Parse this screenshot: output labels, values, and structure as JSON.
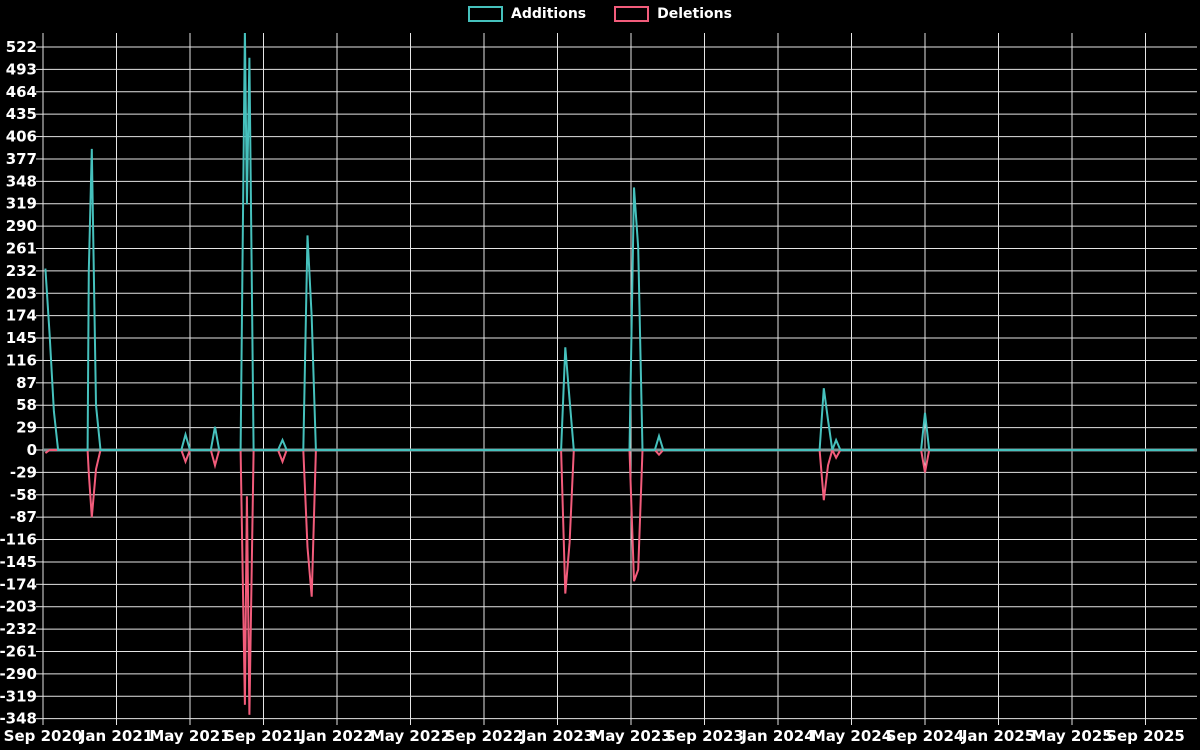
{
  "colors": {
    "background": "#000000",
    "additions": "#46C1BD",
    "deletions": "#F25C7B",
    "grid": "#F2F2F2",
    "zero_line": "#7E9494",
    "text": "#FFFFFF"
  },
  "legend": {
    "items": [
      {
        "label": "Additions",
        "color": "#46C1BD"
      },
      {
        "label": "Deletions",
        "color": "#F25C7B"
      }
    ]
  },
  "chart_data": {
    "type": "line",
    "title": "",
    "xlabel": "",
    "ylabel": "",
    "grid": true,
    "legend_position": "top-center",
    "x_range": [
      "Sep 2020",
      "Sep 2025"
    ],
    "ylim": [
      -348,
      522
    ],
    "y_tick_step": 29,
    "y_ticks": [
      522,
      493,
      464,
      435,
      406,
      377,
      348,
      319,
      290,
      261,
      232,
      203,
      174,
      145,
      116,
      87,
      58,
      29,
      0,
      -29,
      -58,
      -87,
      -116,
      -145,
      -174,
      -203,
      -232,
      -261,
      -290,
      -319,
      -348
    ],
    "x_ticks": [
      "Sep 2020",
      "Jan 2021",
      "May 2021",
      "Sep 2021",
      "Jan 2022",
      "May 2022",
      "Sep 2022",
      "Jan 2023",
      "May 2023",
      "Sep 2023",
      "Jan 2024",
      "May 2024",
      "Sep 2024",
      "Jan 2025",
      "May 2025",
      "Sep 2025"
    ],
    "series_names": [
      "Additions",
      "Deletions"
    ],
    "note_top_clip": "Aug 2021 additions spike exceeds chart top (clipped above 522)",
    "points": [
      {
        "t": "2020-09-05",
        "a": 235,
        "d": -4
      },
      {
        "t": "2020-09-12",
        "a": 150,
        "d": 0
      },
      {
        "t": "2020-09-19",
        "a": 50,
        "d": 0
      },
      {
        "t": "2020-09-26",
        "a": 0,
        "d": 0
      },
      {
        "t": "2020-11-14",
        "a": 0,
        "d": 0
      },
      {
        "t": "2020-11-16",
        "a": 232,
        "d": -30
      },
      {
        "t": "2020-11-21",
        "a": 390,
        "d": -87
      },
      {
        "t": "2020-11-28",
        "a": 58,
        "d": -25
      },
      {
        "t": "2020-12-05",
        "a": 0,
        "d": 0
      },
      {
        "t": "2021-04-17",
        "a": 0,
        "d": 0
      },
      {
        "t": "2021-04-24",
        "a": 20,
        "d": -15
      },
      {
        "t": "2021-05-01",
        "a": 0,
        "d": 0
      },
      {
        "t": "2021-06-05",
        "a": 0,
        "d": 0
      },
      {
        "t": "2021-06-12",
        "a": 30,
        "d": -20
      },
      {
        "t": "2021-06-19",
        "a": 0,
        "d": 0
      },
      {
        "t": "2021-07-24",
        "a": 0,
        "d": 0
      },
      {
        "t": "2021-07-31",
        "a": 545,
        "d": -330
      },
      {
        "t": "2021-08-04",
        "a": 318,
        "d": -60
      },
      {
        "t": "2021-08-08",
        "a": 508,
        "d": -343
      },
      {
        "t": "2021-08-15",
        "a": 0,
        "d": 0
      },
      {
        "t": "2021-09-25",
        "a": 0,
        "d": 0
      },
      {
        "t": "2021-10-02",
        "a": 13,
        "d": -15
      },
      {
        "t": "2021-10-09",
        "a": 0,
        "d": 0
      },
      {
        "t": "2021-11-06",
        "a": 0,
        "d": 0
      },
      {
        "t": "2021-11-13",
        "a": 278,
        "d": -126
      },
      {
        "t": "2021-11-20",
        "a": 172,
        "d": -190
      },
      {
        "t": "2021-11-27",
        "a": 0,
        "d": 0
      },
      {
        "t": "2023-01-07",
        "a": 0,
        "d": 0
      },
      {
        "t": "2023-01-14",
        "a": 133,
        "d": -186
      },
      {
        "t": "2023-01-21",
        "a": 65,
        "d": -120
      },
      {
        "t": "2023-01-28",
        "a": 0,
        "d": 0
      },
      {
        "t": "2023-04-29",
        "a": 0,
        "d": 0
      },
      {
        "t": "2023-05-06",
        "a": 340,
        "d": -170
      },
      {
        "t": "2023-05-13",
        "a": 262,
        "d": -155
      },
      {
        "t": "2023-05-20",
        "a": 0,
        "d": 0
      },
      {
        "t": "2023-06-10",
        "a": 0,
        "d": 0
      },
      {
        "t": "2023-06-17",
        "a": 18,
        "d": -6
      },
      {
        "t": "2023-06-24",
        "a": 0,
        "d": 0
      },
      {
        "t": "2024-03-09",
        "a": 0,
        "d": 0
      },
      {
        "t": "2024-03-16",
        "a": 80,
        "d": -65
      },
      {
        "t": "2024-03-23",
        "a": 39,
        "d": -20
      },
      {
        "t": "2024-03-30",
        "a": 0,
        "d": 0
      },
      {
        "t": "2024-04-06",
        "a": 13,
        "d": -10
      },
      {
        "t": "2024-04-13",
        "a": 0,
        "d": 0
      },
      {
        "t": "2024-08-25",
        "a": 0,
        "d": 0
      },
      {
        "t": "2024-09-01",
        "a": 48,
        "d": -29
      },
      {
        "t": "2024-09-08",
        "a": 0,
        "d": 0
      },
      {
        "t": "2025-11-20",
        "a": 0,
        "d": 0
      }
    ]
  }
}
